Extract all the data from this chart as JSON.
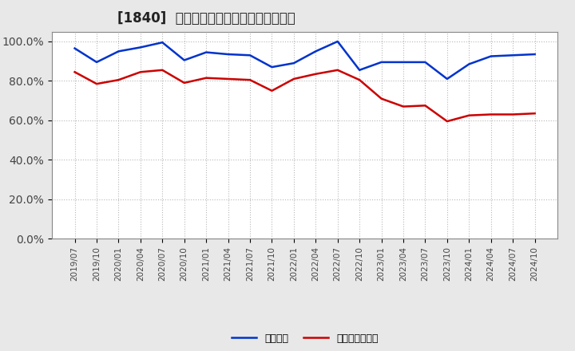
{
  "title": "[1840]  固定比率、固定長期適合率の推移",
  "x_labels": [
    "2019/07",
    "2019/10",
    "2020/01",
    "2020/04",
    "2020/07",
    "2020/10",
    "2021/01",
    "2021/04",
    "2021/07",
    "2021/10",
    "2022/01",
    "2022/04",
    "2022/07",
    "2022/10",
    "2023/01",
    "2023/04",
    "2023/07",
    "2023/10",
    "2024/01",
    "2024/04",
    "2024/07",
    "2024/10"
  ],
  "blue_values": [
    96.5,
    89.5,
    95.0,
    97.0,
    99.5,
    90.5,
    94.5,
    93.5,
    93.0,
    87.0,
    89.0,
    95.0,
    100.0,
    85.5,
    89.5,
    89.5,
    89.5,
    81.0,
    88.5,
    92.5,
    93.0,
    93.5
  ],
  "red_values": [
    84.5,
    78.5,
    80.5,
    84.5,
    85.5,
    79.0,
    81.5,
    81.0,
    80.5,
    75.0,
    81.0,
    83.5,
    85.5,
    80.5,
    71.0,
    67.0,
    67.5,
    59.5,
    62.5,
    63.0,
    63.0,
    63.5
  ],
  "blue_label": "固定比率",
  "red_label": "固定長期適合率",
  "ylim": [
    0,
    105
  ],
  "yticks": [
    0,
    20,
    40,
    60,
    80,
    100
  ],
  "ytick_labels": [
    "0.0%",
    "20.0%",
    "40.0%",
    "60.0%",
    "80.0%",
    "100.0%"
  ],
  "blue_color": "#0033CC",
  "red_color": "#CC0000",
  "plot_bg_color": "#FFFFFF",
  "fig_bg_color": "#E8E8E8",
  "grid_color": "#888888",
  "title_fontsize": 12,
  "tick_fontsize": 7.5,
  "legend_fontsize": 9
}
